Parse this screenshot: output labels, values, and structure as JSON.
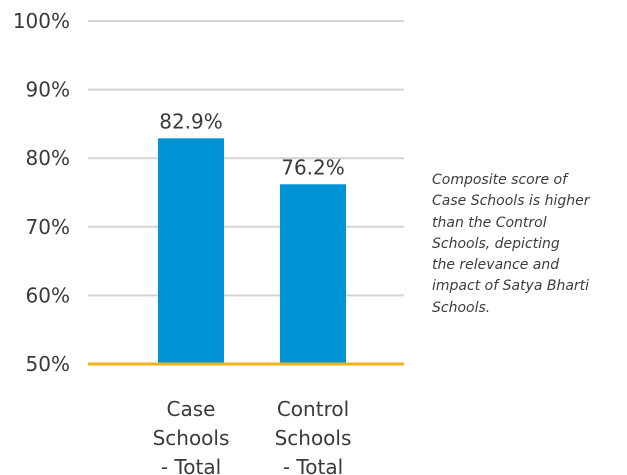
{
  "chart_data": {
    "type": "bar",
    "categories": [
      [
        "Case",
        "Schools",
        "- Total"
      ],
      [
        "Control",
        "Schools",
        "- Total"
      ]
    ],
    "values": [
      82.9,
      76.2
    ],
    "value_labels": [
      "82.9%",
      "76.2%"
    ],
    "ylim": [
      50,
      100
    ],
    "yticks": [
      50,
      60,
      70,
      80,
      90,
      100
    ],
    "ytick_labels": [
      "50%",
      "60%",
      "70%",
      "80%",
      "90%",
      "100%"
    ],
    "grid": true,
    "bar_color": "#0093d6",
    "baseline_color": "#f2b21b",
    "gridline_color": "#d4d4d4",
    "annotation": [
      "Composite score of",
      "Case Schools is higher",
      "than the Control",
      "Schools, depicting",
      "the relevance and",
      "impact of Satya Bharti",
      "Schools."
    ]
  }
}
